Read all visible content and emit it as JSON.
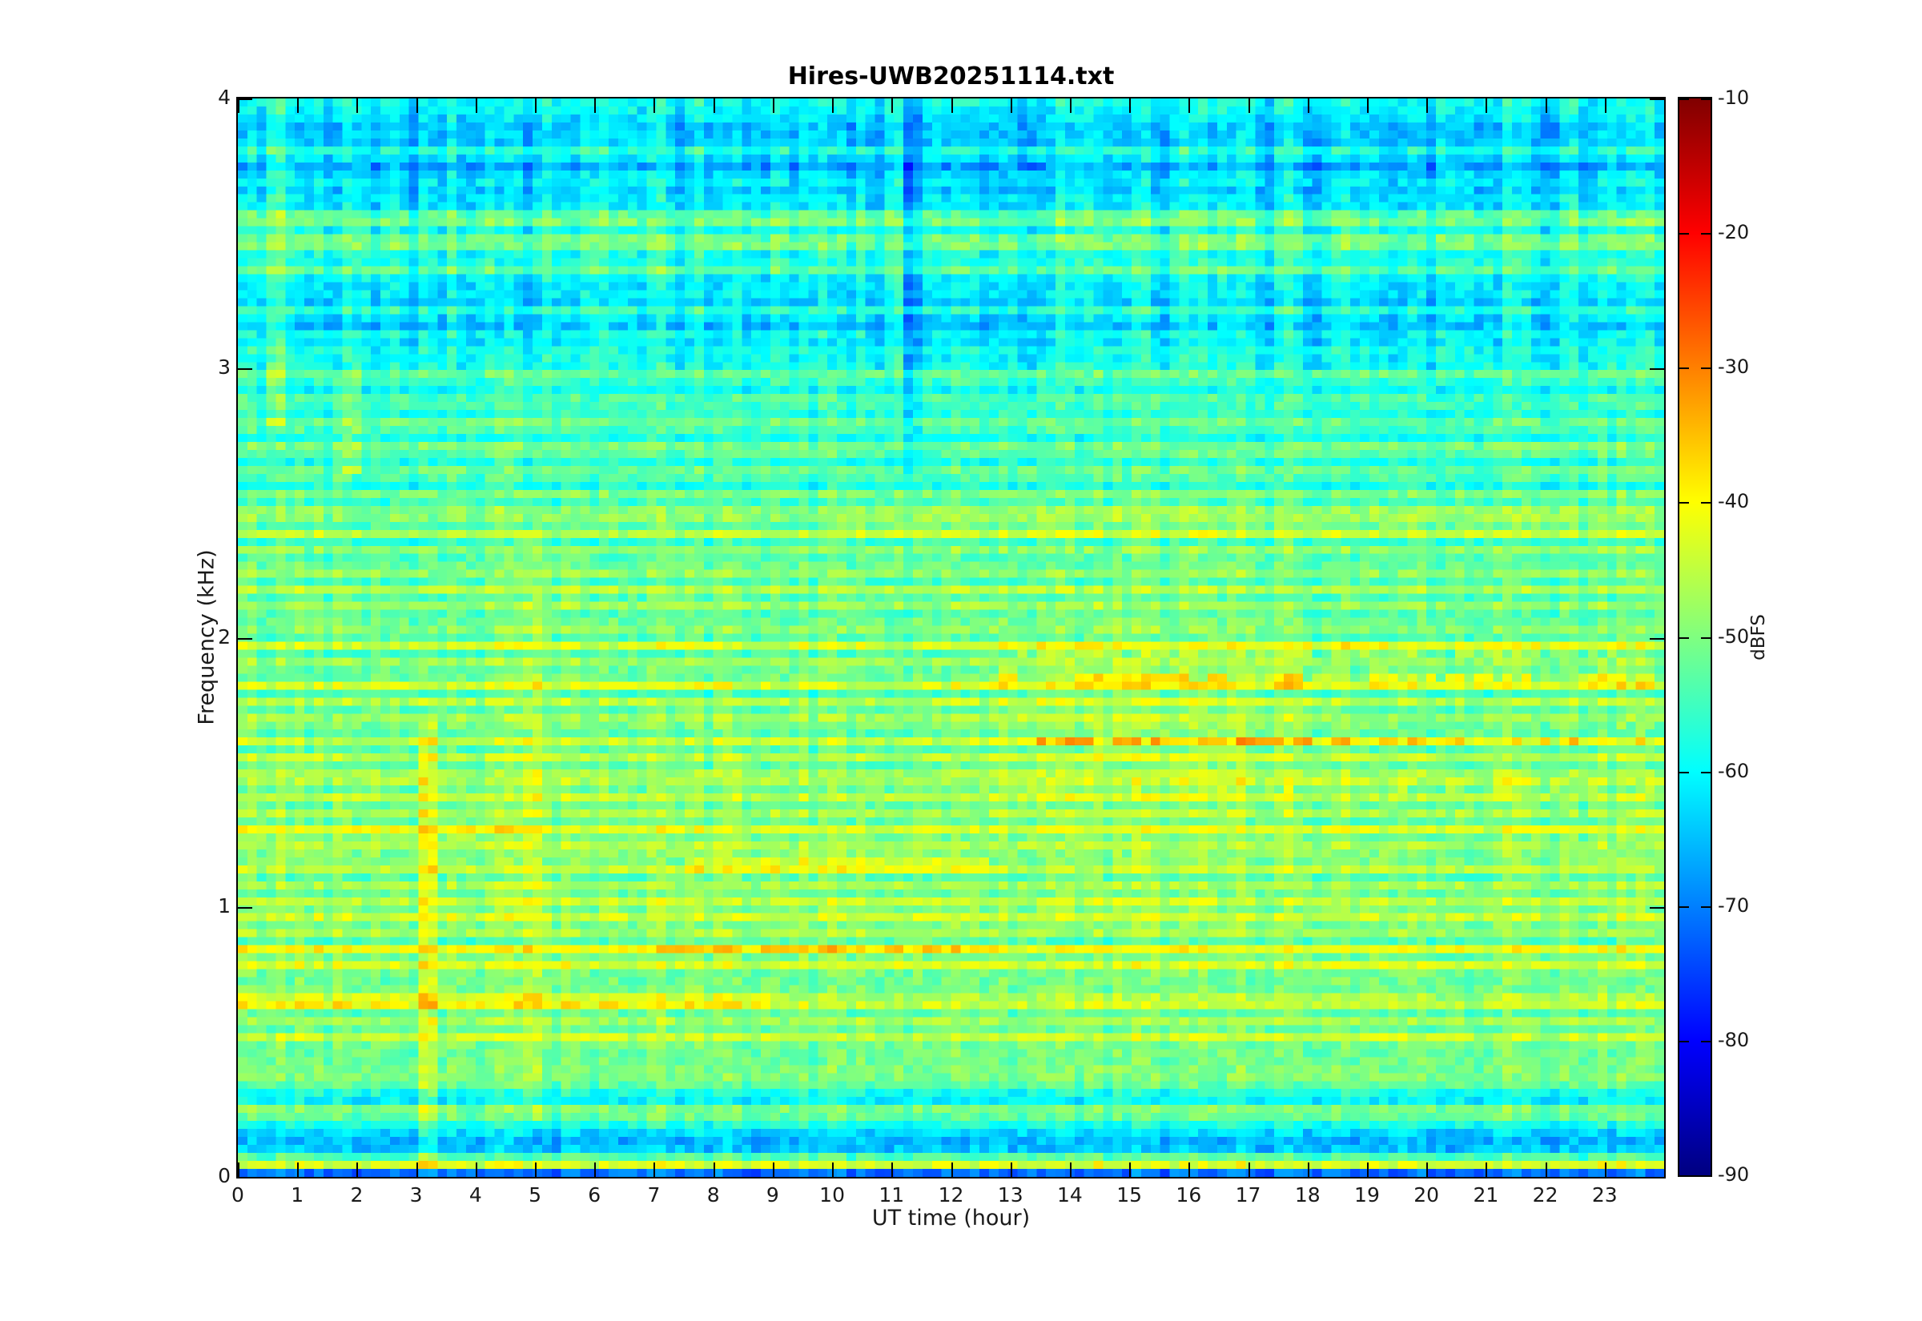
{
  "figure": {
    "title": "Hires-UWB20251114.txt"
  },
  "chart_data": {
    "type": "heatmap",
    "title": "Hires-UWB20251114.txt",
    "xlabel": "UT time (hour)",
    "ylabel": "Frequency (kHz)",
    "x_range": [
      0,
      24
    ],
    "y_range": [
      0,
      4
    ],
    "x_ticks": [
      0,
      1,
      2,
      3,
      4,
      5,
      6,
      7,
      8,
      9,
      10,
      11,
      12,
      13,
      14,
      15,
      16,
      17,
      18,
      19,
      20,
      21,
      22,
      23
    ],
    "y_ticks": [
      0,
      1,
      2,
      3,
      4
    ],
    "grid": false,
    "axis_color": "#000000",
    "text_color": "#1a1a1a",
    "colorbar": {
      "label": "dBFS",
      "min": -90,
      "max": -10,
      "ticks": [
        -10,
        -20,
        -30,
        -40,
        -50,
        -60,
        -70,
        -80,
        -90
      ],
      "colormap": "jet",
      "colormap_stops": [
        [
          "0%",
          "#000080"
        ],
        [
          "12.5%",
          "#0000ff"
        ],
        [
          "37.5%",
          "#00ffff"
        ],
        [
          "62.5%",
          "#ffff00"
        ],
        [
          "87.5%",
          "#ff0000"
        ],
        [
          "100%",
          "#800000"
        ]
      ]
    },
    "description": "24-hour radio spectrogram, 0-4 kHz, broadband background near -55 dBFS with dense harmonic stripe bands (yellow/orange, -45 to -33 dBFS) between 0.4 and 2.5 kHz, quieter blue regions (-62 to -70 dBFS) above 3 kHz and near 0.1-0.3 kHz, and a bright narrow band at the bottom edge near 0.04 kHz.",
    "generator": {
      "seed": 42,
      "nt": 150,
      "nf": 135,
      "cell_noise_db": 3.5,
      "column_noise_db": 2.0,
      "column_hi_noise_db": 3.2,
      "column_hi_fmin": 3.0,
      "row_noise_db": 1.4,
      "row_wave_amp_mid": 1.2,
      "row_wave_amp_high": 2.6,
      "row_wave_fmid": 2.5,
      "row_wave_fhigh": 3.05,
      "stripe_halfwidth_khz": 0.018,
      "background_profile": [
        [
          0.0,
          -72
        ],
        [
          0.018,
          -72
        ],
        [
          0.03,
          -42
        ],
        [
          0.055,
          -42
        ],
        [
          0.07,
          -50
        ],
        [
          0.085,
          -64
        ],
        [
          0.13,
          -66
        ],
        [
          0.15,
          -59
        ],
        [
          0.175,
          -66
        ],
        [
          0.21,
          -52
        ],
        [
          0.25,
          -50
        ],
        [
          0.285,
          -62
        ],
        [
          0.315,
          -57
        ],
        [
          0.36,
          -47
        ],
        [
          0.4,
          -56
        ],
        [
          0.45,
          -54
        ],
        [
          0.6,
          -54
        ],
        [
          0.8,
          -53
        ],
        [
          1.0,
          -53
        ],
        [
          1.2,
          -53
        ],
        [
          1.4,
          -53
        ],
        [
          1.6,
          -53
        ],
        [
          1.8,
          -54
        ],
        [
          2.0,
          -54
        ],
        [
          2.2,
          -55
        ],
        [
          2.4,
          -55
        ],
        [
          2.6,
          -56
        ],
        [
          2.8,
          -57
        ],
        [
          3.0,
          -59
        ],
        [
          3.1,
          -62
        ],
        [
          3.2,
          -63
        ],
        [
          3.32,
          -61
        ],
        [
          3.42,
          -57
        ],
        [
          3.52,
          -57
        ],
        [
          3.62,
          -63
        ],
        [
          3.72,
          -65
        ],
        [
          3.8,
          -63
        ],
        [
          3.88,
          -66
        ],
        [
          3.95,
          -64
        ],
        [
          4.0,
          -58
        ]
      ],
      "stripes": [
        [
          0.41,
          8
        ],
        [
          0.47,
          6
        ],
        [
          0.52,
          10
        ],
        [
          0.58,
          8
        ],
        [
          0.65,
          16
        ],
        [
          0.71,
          7
        ],
        [
          0.78,
          12
        ],
        [
          0.84,
          13
        ],
        [
          0.91,
          8
        ],
        [
          0.97,
          11
        ],
        [
          1.03,
          9
        ],
        [
          1.09,
          7
        ],
        [
          1.15,
          12
        ],
        [
          1.22,
          10
        ],
        [
          1.28,
          12
        ],
        [
          1.35,
          8
        ],
        [
          1.41,
          9
        ],
        [
          1.48,
          11
        ],
        [
          1.55,
          9
        ],
        [
          1.62,
          11
        ],
        [
          1.69,
          9
        ],
        [
          1.76,
          8
        ],
        [
          1.83,
          13
        ],
        [
          1.9,
          8
        ],
        [
          1.97,
          11
        ],
        [
          2.04,
          8
        ],
        [
          2.11,
          9
        ],
        [
          2.18,
          8
        ],
        [
          2.25,
          9
        ],
        [
          2.32,
          7
        ],
        [
          2.39,
          12
        ],
        [
          2.46,
          11
        ],
        [
          2.53,
          6
        ],
        [
          2.61,
          8
        ],
        [
          2.7,
          8
        ],
        [
          2.79,
          7
        ],
        [
          2.88,
          7
        ],
        [
          2.97,
          8
        ],
        [
          3.06,
          5
        ],
        [
          3.21,
          5
        ],
        [
          3.35,
          6
        ],
        [
          3.47,
          11
        ],
        [
          3.56,
          13
        ],
        [
          3.68,
          4
        ],
        [
          3.82,
          5
        ],
        [
          3.93,
          5
        ]
      ],
      "features": [
        {
          "f": 1.16,
          "w": 0.025,
          "t0": 7.6,
          "t1": 12.6,
          "amp": 8,
          "dot": 0
        },
        {
          "f": 0.65,
          "w": 0.03,
          "t0": 0.0,
          "t1": 9.0,
          "amp": 5,
          "dot": 0
        },
        {
          "f": 0.85,
          "w": 0.025,
          "t0": 7.0,
          "t1": 13.0,
          "amp": 4,
          "dot": 0
        },
        {
          "f": 1.28,
          "w": 0.03,
          "t0": 0.0,
          "t1": 5.0,
          "amp": 3,
          "dot": 0
        },
        {
          "f": 1.85,
          "w": 0.025,
          "t0": 12.6,
          "t1": 24.0,
          "amp": 7,
          "dot": 0.55
        },
        {
          "f": 1.62,
          "w": 0.02,
          "t0": 13.0,
          "t1": 24.0,
          "amp": 7,
          "dot": 0.6
        },
        {
          "f": 1.95,
          "w": 0.02,
          "t0": 13.0,
          "t1": 24.0,
          "amp": 6,
          "dot": 0.6
        },
        {
          "f": 1.45,
          "w": 0.02,
          "t0": 12.5,
          "t1": 24.0,
          "amp": 5,
          "dot": 0.45
        },
        {
          "f": 1.7,
          "w": 0.35,
          "t0": 12.6,
          "t1": 18.0,
          "amp": 2.5,
          "dot": 0
        },
        {
          "f": 2.42,
          "w": 0.08,
          "t0": 10.0,
          "t1": 24.0,
          "amp": 2,
          "dot": 0
        }
      ],
      "transients": [
        {
          "t": 3.2,
          "f0": 0.0,
          "f1": 1.7,
          "amp": 7
        },
        {
          "t": 4.95,
          "f0": 0.2,
          "f1": 2.4,
          "amp": 5
        },
        {
          "t": 0.65,
          "f0": 2.8,
          "f1": 4.0,
          "amp": 6
        },
        {
          "t": 1.9,
          "f0": 2.6,
          "f1": 4.0,
          "amp": 5
        },
        {
          "t": 11.4,
          "f0": 2.6,
          "f1": 4.0,
          "amp": -5
        }
      ]
    }
  }
}
